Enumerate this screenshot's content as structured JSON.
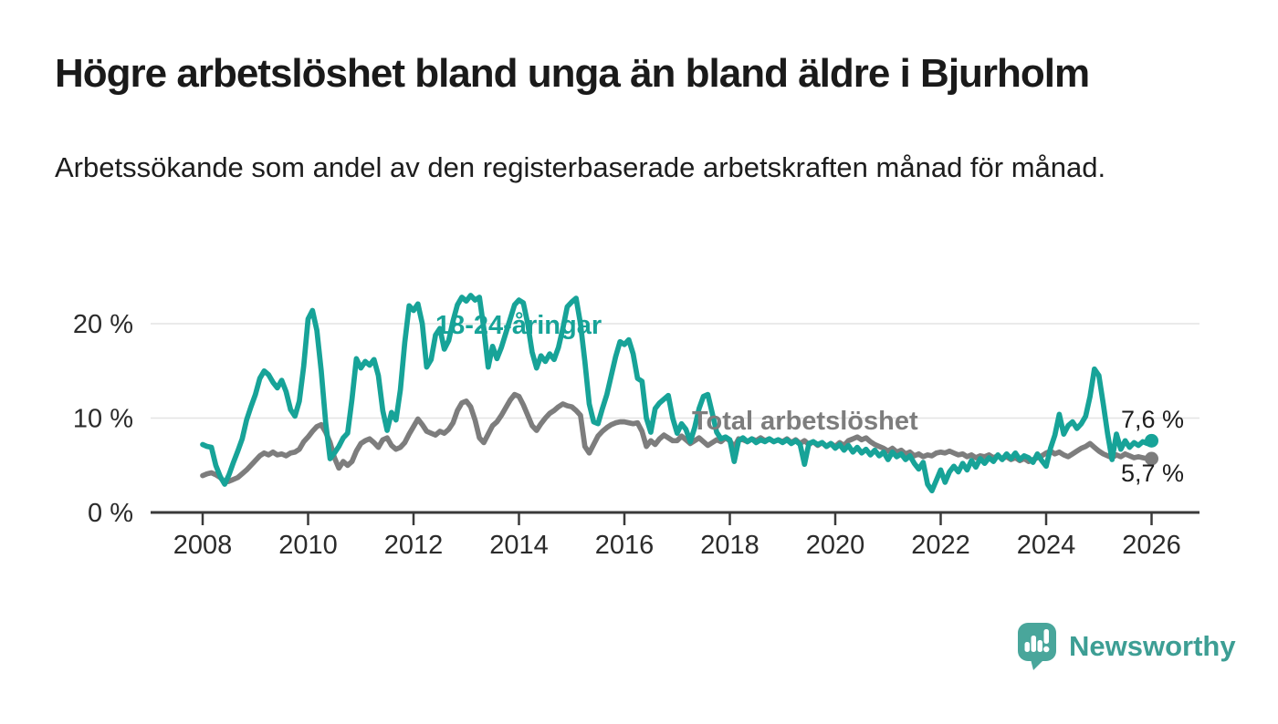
{
  "title": "Högre arbetslöshet bland unga än bland äldre i Bjurholm",
  "subtitle": "Arbetssökande som andel av den registerbaserade arbetskraften månad för månad.",
  "chart_data": {
    "type": "line",
    "unit": "%",
    "interval": "monthly",
    "x_range": [
      "2008-01",
      "2026-01"
    ],
    "x_tick_labels": [
      "2008",
      "2010",
      "2012",
      "2014",
      "2016",
      "2018",
      "2020",
      "2022",
      "2024",
      "2026"
    ],
    "y_axis": {
      "ticks": [
        {
          "label": "20 %",
          "value": 20
        },
        {
          "label": "10 %",
          "value": 10
        },
        {
          "label": "0 %",
          "value": 0
        }
      ],
      "min": 0,
      "max": 23.5
    },
    "grid": "horizontal",
    "series": [
      {
        "name": "18-24-åringar",
        "color": "#17a398",
        "end_label": "7,6 %",
        "end_value": 7.6,
        "start": "2008-01",
        "values": [
          7.2,
          7.0,
          6.9,
          5.0,
          3.8,
          3.0,
          4.0,
          5.3,
          6.5,
          7.8,
          9.8,
          11.2,
          12.5,
          14.2,
          15.0,
          14.6,
          13.8,
          13.2,
          14.0,
          12.8,
          10.9,
          10.2,
          11.8,
          15.5,
          20.5,
          21.4,
          19.3,
          15.0,
          9.5,
          5.7,
          6.3,
          7.0,
          7.9,
          8.4,
          12.0,
          16.3,
          15.3,
          16.0,
          15.6,
          16.2,
          14.5,
          10.8,
          8.7,
          10.6,
          9.8,
          13.0,
          18.0,
          21.9,
          21.4,
          22.1,
          20.0,
          15.4,
          16.2,
          18.8,
          19.5,
          17.3,
          18.2,
          20.3,
          22.0,
          22.8,
          22.4,
          23.0,
          22.5,
          22.8,
          19.5,
          15.4,
          17.6,
          16.3,
          17.5,
          19.0,
          20.5,
          22.0,
          22.5,
          22.2,
          20.0,
          17.0,
          15.3,
          16.6,
          16.0,
          16.8,
          16.2,
          17.5,
          19.5,
          21.8,
          22.3,
          22.7,
          20.0,
          16.0,
          11.5,
          9.6,
          9.4,
          11.0,
          12.5,
          14.5,
          16.5,
          18.1,
          17.8,
          18.3,
          16.8,
          14.2,
          13.9,
          10.0,
          8.5,
          11.0,
          11.6,
          12.0,
          12.4,
          10.0,
          8.4,
          9.4,
          8.8,
          7.5,
          9.0,
          11.0,
          12.3,
          12.5,
          10.5,
          8.5,
          7.8,
          8.0,
          7.7,
          5.4,
          7.6,
          7.9,
          7.5,
          7.8,
          7.4,
          7.7,
          7.5,
          7.8,
          7.5,
          7.7,
          7.4,
          7.7,
          7.3,
          7.6,
          7.2,
          5.1,
          7.3,
          7.5,
          7.2,
          7.4,
          7.0,
          7.3,
          6.8,
          7.2,
          6.6,
          7.1,
          6.4,
          6.9,
          6.3,
          6.7,
          6.1,
          6.6,
          6.0,
          6.4,
          5.6,
          6.4,
          5.9,
          6.2,
          5.6,
          6.0,
          5.2,
          4.6,
          5.3,
          3.0,
          2.3,
          3.4,
          4.5,
          3.2,
          4.3,
          4.9,
          4.3,
          5.2,
          4.5,
          5.5,
          4.8,
          5.7,
          5.2,
          5.8,
          5.4,
          6.1,
          5.6,
          6.2,
          5.7,
          6.3,
          5.6,
          6.0,
          5.8,
          5.3,
          6.2,
          5.5,
          4.9,
          6.8,
          8.2,
          10.4,
          8.3,
          9.2,
          9.6,
          8.9,
          9.4,
          10.2,
          12.3,
          15.2,
          14.5,
          11.5,
          8.3,
          5.6,
          8.3,
          6.7,
          7.6,
          6.9,
          7.4,
          7.1,
          7.5,
          7.3,
          7.6
        ]
      },
      {
        "name": "Total arbetslöshet",
        "color": "#7d7d7d",
        "end_label": "5,7 %",
        "end_value": 5.7,
        "start": "2008-01",
        "values": [
          3.9,
          4.1,
          4.2,
          4.0,
          3.7,
          3.2,
          3.3,
          3.5,
          3.7,
          4.1,
          4.5,
          5.0,
          5.5,
          6.0,
          6.3,
          6.1,
          6.4,
          6.1,
          6.2,
          6.0,
          6.3,
          6.4,
          6.7,
          7.5,
          8.0,
          8.6,
          9.1,
          9.3,
          8.5,
          7.4,
          5.8,
          4.7,
          5.4,
          5.0,
          5.4,
          6.5,
          7.3,
          7.6,
          7.8,
          7.4,
          6.9,
          7.7,
          7.9,
          7.1,
          6.7,
          6.9,
          7.4,
          8.3,
          9.1,
          9.9,
          9.3,
          8.6,
          8.4,
          8.2,
          8.6,
          8.4,
          8.8,
          9.5,
          10.8,
          11.6,
          11.8,
          11.2,
          9.8,
          7.9,
          7.4,
          8.3,
          9.2,
          9.6,
          10.3,
          11.1,
          11.9,
          12.5,
          12.3,
          11.4,
          10.3,
          9.2,
          8.7,
          9.4,
          10.0,
          10.5,
          10.8,
          11.2,
          11.5,
          11.3,
          11.2,
          10.8,
          10.3,
          7.0,
          6.3,
          7.2,
          8.1,
          8.6,
          9.0,
          9.3,
          9.5,
          9.6,
          9.6,
          9.5,
          9.4,
          9.5,
          8.6,
          7.0,
          7.6,
          7.2,
          7.8,
          8.2,
          7.9,
          7.6,
          7.6,
          8.1,
          7.7,
          7.3,
          7.6,
          7.9,
          7.5,
          7.1,
          7.4,
          7.7,
          7.5,
          7.9,
          7.6,
          6.9,
          7.8,
          7.7,
          7.5,
          7.8,
          7.6,
          7.9,
          7.6,
          7.8,
          7.5,
          7.7,
          7.5,
          7.8,
          7.4,
          7.7,
          7.3,
          7.6,
          7.2,
          7.5,
          7.1,
          7.4,
          7.0,
          7.3,
          7.0,
          7.4,
          7.1,
          7.6,
          7.8,
          8.0,
          7.7,
          7.9,
          7.5,
          7.2,
          7.0,
          6.8,
          6.5,
          6.8,
          6.4,
          6.6,
          6.2,
          6.4,
          6.0,
          6.2,
          5.9,
          6.1,
          6.0,
          6.3,
          6.4,
          6.3,
          6.5,
          6.3,
          6.1,
          6.2,
          5.9,
          6.1,
          5.8,
          6.0,
          5.9,
          6.1,
          5.8,
          6.0,
          5.7,
          5.9,
          5.6,
          5.8,
          5.5,
          5.7,
          5.4,
          5.6,
          5.8,
          6.0,
          6.3,
          6.5,
          6.2,
          6.4,
          6.1,
          5.9,
          6.2,
          6.5,
          6.8,
          7.0,
          7.3,
          6.9,
          6.5,
          6.2,
          6.0,
          5.8,
          6.1,
          5.9,
          6.2,
          6.0,
          5.8,
          5.9,
          5.8,
          5.7,
          5.7
        ]
      }
    ]
  },
  "branding": {
    "logo_text": "Newsworthy",
    "logo_color": "#3d9e94",
    "logo_icon": "bar-chart-speech-bubble-icon"
  }
}
